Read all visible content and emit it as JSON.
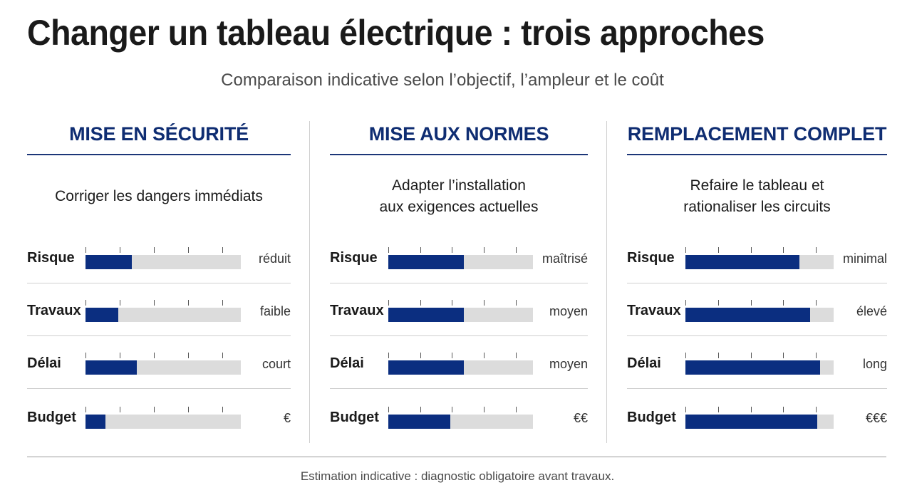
{
  "title": "Changer un tableau électrique : trois approches",
  "subtitle": "Comparaison indicative selon l’objectif, l’ampleur et le coût",
  "footer": "Estimation indicative : diagnostic obligatoire avant travaux.",
  "colors": {
    "accent": "#0b2e80",
    "header_text": "#0f2d72",
    "track": "#dcdcdc"
  },
  "columns": [
    {
      "header": "MISE EN SÉCURITÉ",
      "description": "Corriger les dangers immédiats"
    },
    {
      "header": "MISE AUX NORMES",
      "description": "Adapter l’installation\naux exigences actuelles"
    },
    {
      "header": "REMPLACEMENT COMPLET",
      "description": "Refaire le tableau et\nrationaliser les circuits"
    }
  ],
  "chart_data": [
    {
      "type": "bar",
      "title": "MISE EN SÉCURITÉ",
      "categories": [
        "Risque",
        "Travaux",
        "Délai",
        "Budget"
      ],
      "values": [
        0.3,
        0.21,
        0.33,
        0.13
      ],
      "value_labels": [
        "réduit",
        "faible",
        "court",
        "€"
      ],
      "xlim": [
        0,
        1
      ]
    },
    {
      "type": "bar",
      "title": "MISE AUX NORMES",
      "categories": [
        "Risque",
        "Travaux",
        "Délai",
        "Budget"
      ],
      "values": [
        0.52,
        0.52,
        0.52,
        0.43
      ],
      "value_labels": [
        "maîtrisé",
        "moyen",
        "moyen",
        "€€"
      ],
      "xlim": [
        0,
        1
      ]
    },
    {
      "type": "bar",
      "title": "REMPLACEMENT COMPLET",
      "categories": [
        "Risque",
        "Travaux",
        "Délai",
        "Budget"
      ],
      "values": [
        0.77,
        0.84,
        0.91,
        0.89
      ],
      "value_labels": [
        "minimal",
        "élevé",
        "long",
        "€€€"
      ],
      "xlim": [
        0,
        1
      ]
    }
  ]
}
